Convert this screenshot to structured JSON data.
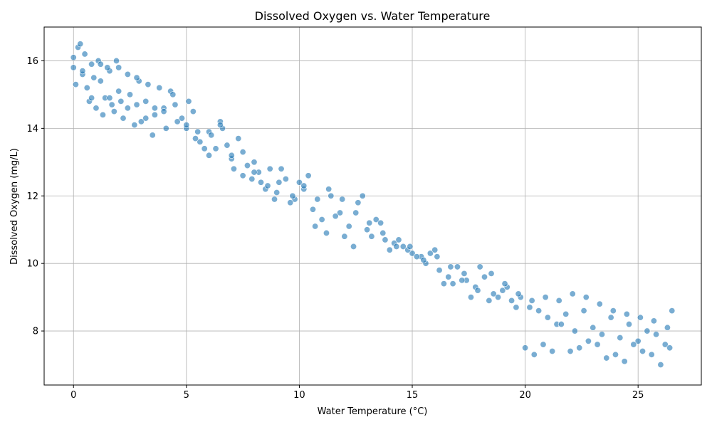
{
  "chart_data": {
    "type": "scatter",
    "title": "Dissolved Oxygen vs. Water Temperature",
    "xlabel": "Water Temperature (°C)",
    "ylabel": "Dissolved Oxygen (mg/L)",
    "xlim": [
      -1.3,
      27.8
    ],
    "ylim": [
      6.4,
      17.0
    ],
    "xticks": [
      0,
      5,
      10,
      15,
      20,
      25
    ],
    "yticks": [
      8,
      10,
      12,
      14,
      16
    ],
    "grid": true,
    "colors": {
      "marker": "#1f77b4",
      "marker_edge": "#ffffff",
      "grid": "#b0b0b0"
    },
    "series": [
      {
        "x": [
          0.0,
          0.2,
          0.4,
          0.6,
          0.8,
          1.0,
          1.2,
          1.4,
          1.6,
          1.8,
          2.0,
          2.2,
          2.5,
          2.8,
          3.0,
          3.3,
          3.6,
          4.0,
          4.3,
          4.6,
          5.0,
          5.3,
          5.6,
          6.0,
          6.3,
          6.6,
          7.0,
          7.3,
          7.7,
          8.0,
          8.3,
          8.7,
          9.0,
          9.4,
          9.8,
          10.2,
          10.6,
          11.0,
          11.4,
          11.8,
          12.2,
          12.6,
          13.0,
          13.4,
          13.8,
          14.2,
          14.6,
          15.0,
          15.4,
          15.8,
          16.2,
          16.6,
          17.0,
          17.4,
          17.8,
          18.2,
          18.6,
          19.0,
          19.4,
          19.8,
          20.2,
          20.6,
          21.0,
          21.4,
          21.8,
          22.2,
          22.6,
          23.0,
          23.4,
          23.8,
          24.2,
          24.6,
          25.0,
          25.4,
          25.8,
          26.2,
          26.5
        ],
        "y": [
          15.8,
          16.4,
          15.6,
          15.2,
          15.9,
          14.6,
          15.4,
          14.9,
          15.7,
          14.5,
          15.1,
          14.3,
          15.0,
          14.7,
          14.2,
          15.3,
          14.4,
          14.6,
          15.1,
          14.2,
          14.0,
          14.5,
          13.6,
          13.9,
          13.4,
          14.0,
          13.1,
          13.7,
          12.9,
          13.0,
          12.4,
          12.8,
          12.1,
          12.5,
          11.9,
          12.2,
          11.6,
          11.3,
          12.0,
          11.5,
          11.1,
          11.8,
          11.0,
          11.3,
          10.7,
          10.6,
          10.5,
          10.3,
          10.2,
          10.3,
          9.8,
          9.6,
          9.9,
          9.5,
          9.3,
          9.6,
          9.1,
          9.2,
          8.9,
          9.0,
          8.7,
          8.6,
          8.4,
          8.2,
          8.5,
          8.0,
          8.6,
          8.1,
          7.9,
          8.4,
          7.8,
          8.2,
          7.7,
          8.0,
          7.9,
          7.6,
          8.6
        ]
      },
      {
        "x": [
          0.1,
          0.3,
          0.5,
          0.7,
          0.9,
          1.1,
          1.3,
          1.5,
          1.7,
          1.9,
          2.1,
          2.4,
          2.7,
          2.9,
          3.2,
          3.5,
          3.8,
          4.1,
          4.4,
          4.8,
          5.1,
          5.4,
          5.8,
          6.1,
          6.5,
          6.8,
          7.1,
          7.5,
          7.9,
          8.2,
          8.5,
          8.9,
          9.2,
          9.6,
          10.0,
          10.4,
          10.8,
          11.2,
          11.6,
          12.0,
          12.4,
          12.8,
          13.2,
          13.6,
          14.0,
          14.4,
          14.8,
          15.2,
          15.6,
          16.0,
          16.4,
          16.8,
          17.2,
          17.6,
          18.0,
          18.4,
          18.8,
          19.2,
          19.6,
          20.0,
          20.4,
          20.8,
          21.2,
          21.6,
          22.0,
          22.4,
          22.8,
          23.2,
          23.6,
          24.0,
          24.4,
          24.8,
          25.2,
          25.6,
          26.0,
          26.4
        ],
        "y": [
          15.3,
          16.5,
          16.2,
          14.8,
          15.5,
          16.0,
          14.4,
          15.8,
          14.7,
          16.0,
          14.8,
          15.6,
          14.1,
          15.4,
          14.8,
          13.8,
          15.2,
          14.0,
          15.0,
          14.3,
          14.8,
          13.7,
          13.4,
          13.8,
          14.2,
          13.5,
          12.8,
          13.3,
          12.5,
          12.7,
          12.2,
          11.9,
          12.8,
          11.8,
          12.4,
          12.6,
          11.9,
          10.9,
          11.4,
          10.8,
          10.5,
          12.0,
          10.8,
          11.2,
          10.4,
          10.7,
          10.4,
          10.2,
          10.0,
          10.4,
          9.4,
          9.4,
          9.5,
          9.0,
          9.9,
          8.9,
          9.0,
          9.3,
          8.7,
          7.5,
          7.3,
          7.6,
          7.4,
          8.2,
          7.4,
          7.5,
          7.7,
          7.6,
          7.2,
          7.3,
          7.1,
          7.6,
          7.4,
          7.3,
          7.0,
          7.5
        ]
      },
      {
        "x": [
          0.0,
          0.4,
          0.8,
          1.2,
          1.6,
          2.0,
          2.4,
          2.8,
          3.2,
          3.6,
          4.0,
          4.5,
          5.0,
          5.5,
          6.0,
          6.5,
          7.0,
          7.5,
          8.0,
          8.6,
          9.1,
          9.7,
          10.2,
          10.7,
          11.3,
          11.9,
          12.5,
          13.1,
          13.7,
          14.3,
          14.9,
          15.5,
          16.1,
          16.7,
          17.3,
          17.9,
          18.5,
          19.1,
          19.7,
          20.3,
          20.9,
          21.5,
          22.1,
          22.7,
          23.3,
          23.9,
          24.5,
          25.1,
          25.7,
          26.3
        ],
        "y": [
          16.1,
          15.7,
          14.9,
          15.9,
          14.9,
          15.8,
          14.6,
          15.5,
          14.3,
          14.6,
          14.5,
          14.7,
          14.1,
          13.9,
          13.2,
          14.1,
          13.2,
          12.6,
          12.7,
          12.3,
          12.4,
          12.0,
          12.3,
          11.1,
          12.2,
          11.9,
          11.5,
          11.2,
          10.9,
          10.5,
          10.5,
          10.1,
          10.2,
          9.9,
          9.7,
          9.2,
          9.7,
          9.4,
          9.1,
          8.9,
          9.0,
          8.9,
          9.1,
          9.0,
          8.8,
          8.6,
          8.5,
          8.4,
          8.3,
          8.1
        ]
      }
    ]
  }
}
